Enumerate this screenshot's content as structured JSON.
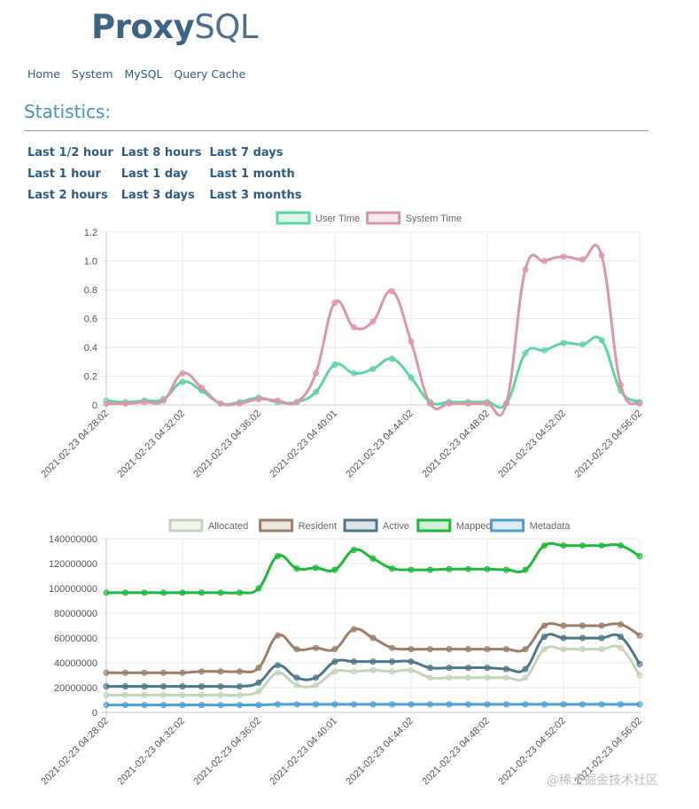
{
  "logo": {
    "bold": "Proxy",
    "light": "SQL"
  },
  "nav": {
    "items": [
      "Home",
      "System",
      "MySQL",
      "Query Cache"
    ]
  },
  "page_title": "Statistics:",
  "time_ranges": [
    [
      "Last 1/2 hour",
      "Last 8 hours",
      "Last 7 days"
    ],
    [
      "Last 1 hour",
      "Last 1 day",
      "Last 1 month"
    ],
    [
      "Last 2 hours",
      "Last 3 days",
      "Last 3 months"
    ]
  ],
  "watermark": "@稀土掘金技术社区",
  "chart_data": [
    {
      "type": "line",
      "x_ticks": [
        "2021-02-23 04:28:02",
        "2021-02-23 04:32:02",
        "2021-02-23 04:36:02",
        "2021-02-23 04:40:01",
        "2021-02-23 04:44:02",
        "2021-02-23 04:48:02",
        "2021-02-23 04:52:02",
        "2021-02-23 04:56:02"
      ],
      "ylim": [
        0,
        1.2
      ],
      "y_ticks": [
        "0",
        "0.2",
        "0.4",
        "0.6",
        "0.8",
        "1.0",
        "1.2"
      ],
      "y_tick_values": [
        0,
        0.2,
        0.4,
        0.6,
        0.8,
        1.0,
        1.2
      ],
      "grid": true,
      "legend": "top",
      "series": [
        {
          "name": "User Time",
          "color": "#5fd6a0",
          "values": [
            0.03,
            0.02,
            0.03,
            0.04,
            0.16,
            0.1,
            0.01,
            0.02,
            0.05,
            0.02,
            0.02,
            0.09,
            0.28,
            0.22,
            0.25,
            0.32,
            0.19,
            0.02,
            0.02,
            0.02,
            0.02,
            0.01,
            0.36,
            0.38,
            0.43,
            0.42,
            0.45,
            0.1,
            0.02
          ]
        },
        {
          "name": "System Time",
          "color": "#d997a9",
          "values": [
            0.01,
            0.01,
            0.02,
            0.03,
            0.22,
            0.12,
            0.01,
            0.01,
            0.04,
            0.03,
            0.02,
            0.22,
            0.71,
            0.54,
            0.58,
            0.79,
            0.44,
            0.01,
            0.01,
            0.01,
            0.01,
            0.01,
            0.94,
            1.0,
            1.03,
            1.01,
            1.04,
            0.14,
            0.01
          ]
        }
      ]
    },
    {
      "type": "line",
      "x_ticks": [
        "2021-02-23 04:28:02",
        "2021-02-23 04:32:02",
        "2021-02-23 04:36:02",
        "2021-02-23 04:40:01",
        "2021-02-23 04:44:02",
        "2021-02-23 04:48:02",
        "2021-02-23 04:52:02",
        "2021-02-23 04:56:02"
      ],
      "ylim": [
        0,
        140000000
      ],
      "y_ticks": [
        "0",
        "20000000",
        "40000000",
        "60000000",
        "80000000",
        "100000000",
        "120000000",
        "140000000"
      ],
      "y_tick_values": [
        0,
        20000000,
        40000000,
        60000000,
        80000000,
        100000000,
        120000000,
        140000000
      ],
      "grid": true,
      "legend": "top",
      "series": [
        {
          "name": "Allocated",
          "color": "#c5d4bd",
          "values": [
            14000000,
            14000000,
            14000000,
            14000000,
            14000000,
            14000000,
            14000000,
            14000000,
            17000000,
            32000000,
            22000000,
            22000000,
            33000000,
            33000000,
            34000000,
            33000000,
            34000000,
            28000000,
            28000000,
            28000000,
            28000000,
            28000000,
            28000000,
            51000000,
            51000000,
            51000000,
            51000000,
            52000000,
            30000000
          ]
        },
        {
          "name": "Resident",
          "color": "#9b7e6c",
          "values": [
            32000000,
            32000000,
            32000000,
            32000000,
            32000000,
            33000000,
            33000000,
            33000000,
            36000000,
            62000000,
            51000000,
            52000000,
            51000000,
            67000000,
            60000000,
            52000000,
            51000000,
            51000000,
            51000000,
            51000000,
            51000000,
            51000000,
            51000000,
            70000000,
            70000000,
            70000000,
            70000000,
            71000000,
            62000000
          ]
        },
        {
          "name": "Active",
          "color": "#4e7788",
          "values": [
            21000000,
            21000000,
            21000000,
            21000000,
            21000000,
            21000000,
            21000000,
            21000000,
            24000000,
            38000000,
            28000000,
            28000000,
            41000000,
            41000000,
            41000000,
            41000000,
            41000000,
            36000000,
            36000000,
            36000000,
            36000000,
            35000000,
            35000000,
            61000000,
            60000000,
            60000000,
            60000000,
            61000000,
            39000000
          ]
        },
        {
          "name": "Mapped",
          "color": "#1fb83a",
          "values": [
            96500000,
            96500000,
            96500000,
            96500000,
            96500000,
            96500000,
            96500000,
            96500000,
            100000000,
            126000000,
            116000000,
            116500000,
            115000000,
            131000000,
            124000000,
            116000000,
            115000000,
            115000000,
            115500000,
            115500000,
            115500000,
            115000000,
            115000000,
            134500000,
            134500000,
            134500000,
            134500000,
            134500000,
            126000000
          ]
        },
        {
          "name": "Metadata",
          "color": "#4f9fd3",
          "values": [
            6000000,
            6000000,
            6000000,
            6000000,
            6000000,
            6000000,
            6000000,
            6000000,
            6000000,
            6500000,
            6500000,
            6500000,
            6500000,
            6500000,
            6500000,
            6500000,
            6500000,
            6500000,
            6500000,
            6500000,
            6500000,
            6500000,
            6500000,
            6500000,
            6500000,
            6500000,
            6500000,
            6500000,
            6500000
          ]
        }
      ]
    }
  ]
}
